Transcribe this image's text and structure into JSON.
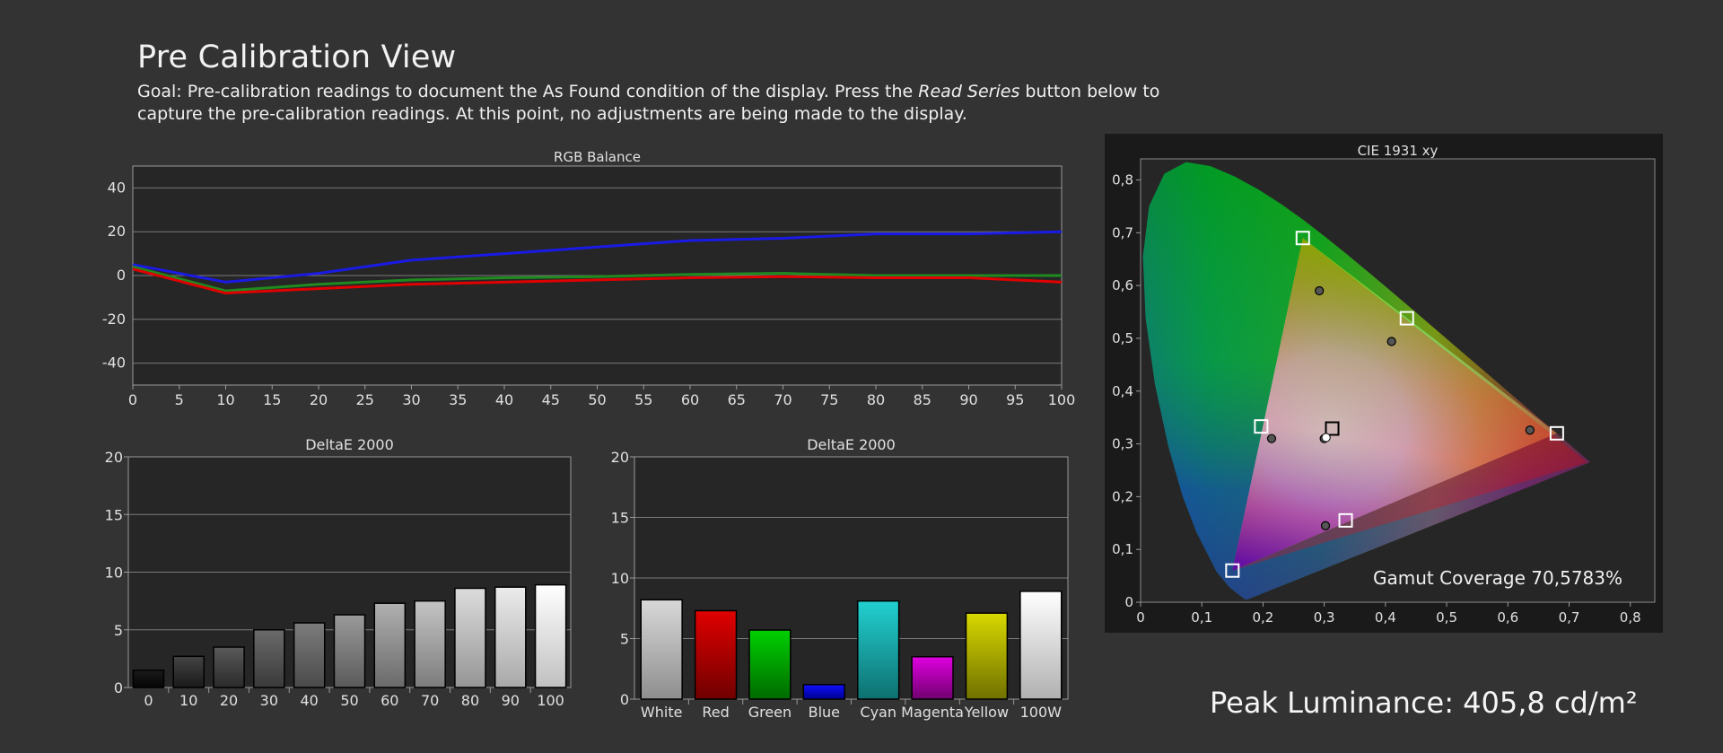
{
  "page": {
    "title": "Pre Calibration View",
    "goal_prefix": "Goal: Pre-calibration readings to document the As Found condition of the display. Press the ",
    "goal_italic": "Read Series",
    "goal_suffix": " button below to capture the pre-calibration readings. At this point, no adjustments are being made to the display.",
    "peak_luminance": "Peak Luminance: 405,8 cd/m²"
  },
  "colors": {
    "background": "#333333",
    "plot_bg": "#262626",
    "red": "#e00000",
    "green": "#1f8a1f",
    "blue": "#1a1ae6"
  },
  "chart_data": [
    {
      "id": "rgb",
      "type": "line",
      "title": "RGB Balance",
      "x": [
        0,
        10,
        20,
        30,
        40,
        50,
        60,
        70,
        80,
        90,
        100
      ],
      "xticks": [
        "0",
        "5",
        "10",
        "15",
        "20",
        "25",
        "30",
        "35",
        "40",
        "45",
        "50",
        "55",
        "60",
        "65",
        "70",
        "75",
        "80",
        "85",
        "90",
        "95",
        "100"
      ],
      "yticks": [
        "40",
        "20",
        "0",
        "-20",
        "-40"
      ],
      "ylim": [
        -50,
        50
      ],
      "xlim": [
        0,
        100
      ],
      "grid": true,
      "series": [
        {
          "color": "#1a1ae6",
          "values": [
            5,
            -3,
            1,
            7,
            10,
            13,
            16,
            17,
            19,
            19,
            20
          ]
        },
        {
          "color": "#1f8a1f",
          "values": [
            4,
            -7,
            -4,
            -2,
            -1,
            -0.5,
            0.5,
            1,
            0,
            0,
            0
          ]
        },
        {
          "color": "#e00000",
          "values": [
            3,
            -8,
            -6,
            -4,
            -3,
            -2,
            -1,
            -0.5,
            -1,
            -1,
            -3
          ]
        }
      ]
    },
    {
      "id": "de_gray",
      "type": "bar",
      "title": "DeltaE 2000",
      "categories": [
        "0",
        "10",
        "20",
        "30",
        "40",
        "50",
        "60",
        "70",
        "80",
        "90",
        "100"
      ],
      "values": [
        1.5,
        2.7,
        3.5,
        5.0,
        5.6,
        6.3,
        7.3,
        7.5,
        8.6,
        8.7,
        8.9
      ],
      "yticks": [
        "20",
        "15",
        "10",
        "5",
        "0"
      ],
      "ylim": [
        0,
        20
      ],
      "grid": true,
      "bar_colors": [
        [
          "#1a1a1a",
          "#050505"
        ],
        [
          "#444444",
          "#1a1a1a"
        ],
        [
          "#5a5a5a",
          "#2a2a2a"
        ],
        [
          "#6a6a6a",
          "#3a3a3a"
        ],
        [
          "#7c7c7c",
          "#4a4a4a"
        ],
        [
          "#9a9a9a",
          "#5a5a5a"
        ],
        [
          "#b0b0b0",
          "#6a6a6a"
        ],
        [
          "#c4c4c4",
          "#7c7c7c"
        ],
        [
          "#dcdcdc",
          "#959595"
        ],
        [
          "#ebebeb",
          "#a8a8a8"
        ],
        [
          "#ffffff",
          "#c0c0c0"
        ]
      ]
    },
    {
      "id": "de_color",
      "type": "bar",
      "title": "DeltaE 2000",
      "categories": [
        "White",
        "Red",
        "Green",
        "Blue",
        "Cyan",
        "Magenta",
        "Yellow",
        "100W"
      ],
      "values": [
        8.2,
        7.3,
        5.7,
        1.2,
        8.1,
        3.5,
        7.1,
        8.9
      ],
      "yticks": [
        "20",
        "15",
        "10",
        "5",
        "0"
      ],
      "ylim": [
        0,
        20
      ],
      "grid": true,
      "bar_colors": [
        [
          "#d8d8d8",
          "#8e8e8e"
        ],
        [
          "#e00000",
          "#700000"
        ],
        [
          "#00d000",
          "#006a00"
        ],
        [
          "#1010ff",
          "#000090"
        ],
        [
          "#22d0d0",
          "#0e7070"
        ],
        [
          "#e000e0",
          "#700070"
        ],
        [
          "#d8d800",
          "#707000"
        ],
        [
          "#ffffff",
          "#b0b0b0"
        ]
      ]
    },
    {
      "id": "cie",
      "type": "scatter",
      "title": "CIE 1931 xy",
      "xticks": [
        "0",
        "0,1",
        "0,2",
        "0,3",
        "0,4",
        "0,5",
        "0,6",
        "0,7",
        "0,8"
      ],
      "yticks": [
        "0,8",
        "0,7",
        "0,6",
        "0,5",
        "0,4",
        "0,3",
        "0,2",
        "0,1",
        "0"
      ],
      "xlim": [
        0,
        0.84
      ],
      "ylim": [
        0,
        0.84
      ],
      "gamut_coverage": "Gamut Coverage 70,5783%",
      "target_triangle": [
        [
          0.73,
          0.265
        ],
        [
          0.265,
          0.69
        ],
        [
          0.15,
          0.06
        ]
      ],
      "measured_triangle": [
        [
          0.68,
          0.32
        ],
        [
          0.265,
          0.69
        ],
        [
          0.15,
          0.06
        ]
      ],
      "targets": [
        [
          0.68,
          0.32
        ],
        [
          0.265,
          0.69
        ],
        [
          0.15,
          0.06
        ],
        [
          0.197,
          0.333
        ],
        [
          0.435,
          0.538
        ],
        [
          0.335,
          0.155
        ],
        [
          0.313,
          0.329
        ]
      ],
      "measured": [
        [
          0.636,
          0.326
        ],
        [
          0.292,
          0.59
        ],
        [
          0.214,
          0.31
        ],
        [
          0.41,
          0.494
        ],
        [
          0.302,
          0.145
        ],
        [
          0.3,
          0.31
        ],
        [
          0.303,
          0.312
        ]
      ]
    }
  ]
}
